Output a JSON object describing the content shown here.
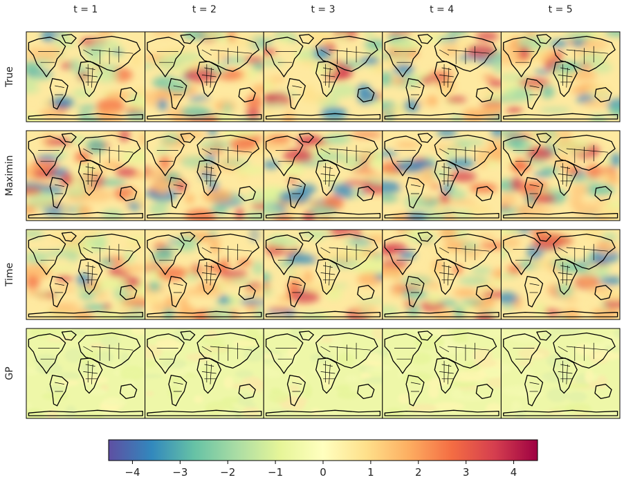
{
  "chart_data": {
    "type": "heatmap",
    "description_columns": [
      "t = 1",
      "t = 2",
      "t = 3",
      "t = 4",
      "t = 5"
    ],
    "rows": [
      {
        "label": "True",
        "fill": "mixed warm and cool anomalies with strong red patches"
      },
      {
        "label": "Maximin",
        "fill": "mixed warm and cool anomalies, slightly smoother"
      },
      {
        "label": "Time",
        "fill": "mixed anomalies, warm tone over oceans"
      },
      {
        "label": "GP",
        "fill": "mostly near-zero light yellow-green"
      }
    ],
    "colorbar": {
      "colormap": "Spectral_r",
      "range": [
        -4.5,
        4.5
      ],
      "ticks": [
        -4,
        -3,
        -2,
        -1,
        0,
        1,
        2,
        3,
        4
      ],
      "tick_labels": [
        "−4",
        "−3",
        "−2",
        "−1",
        "0",
        "1",
        "2",
        "3",
        "4"
      ]
    },
    "map_projection": "world map with coastlines and country borders"
  }
}
